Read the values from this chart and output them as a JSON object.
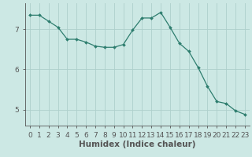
{
  "x": [
    0,
    1,
    2,
    3,
    4,
    5,
    6,
    7,
    8,
    9,
    10,
    11,
    12,
    13,
    14,
    15,
    16,
    17,
    18,
    19,
    20,
    21,
    22,
    23
  ],
  "y": [
    7.35,
    7.35,
    7.2,
    7.05,
    6.75,
    6.75,
    6.68,
    6.58,
    6.55,
    6.55,
    6.62,
    6.98,
    7.28,
    7.28,
    7.42,
    7.05,
    6.65,
    6.45,
    6.05,
    5.58,
    5.2,
    5.15,
    4.97,
    4.88
  ],
  "line_color": "#2d7d6e",
  "marker": "D",
  "marker_size": 2.0,
  "bg_color": "#cce8e4",
  "grid_color": "#aecfcb",
  "axis_color": "#555555",
  "xlabel": "Humidex (Indice chaleur)",
  "ylim": [
    4.6,
    7.65
  ],
  "xlim": [
    -0.5,
    23.5
  ],
  "yticks": [
    5,
    6,
    7
  ],
  "xtick_labels": [
    "0",
    "1",
    "2",
    "3",
    "4",
    "5",
    "6",
    "7",
    "8",
    "9",
    "10",
    "11",
    "12",
    "13",
    "14",
    "15",
    "16",
    "17",
    "18",
    "19",
    "20",
    "21",
    "22",
    "23"
  ],
  "xlabel_fontsize": 7.5,
  "tick_fontsize": 6.5
}
